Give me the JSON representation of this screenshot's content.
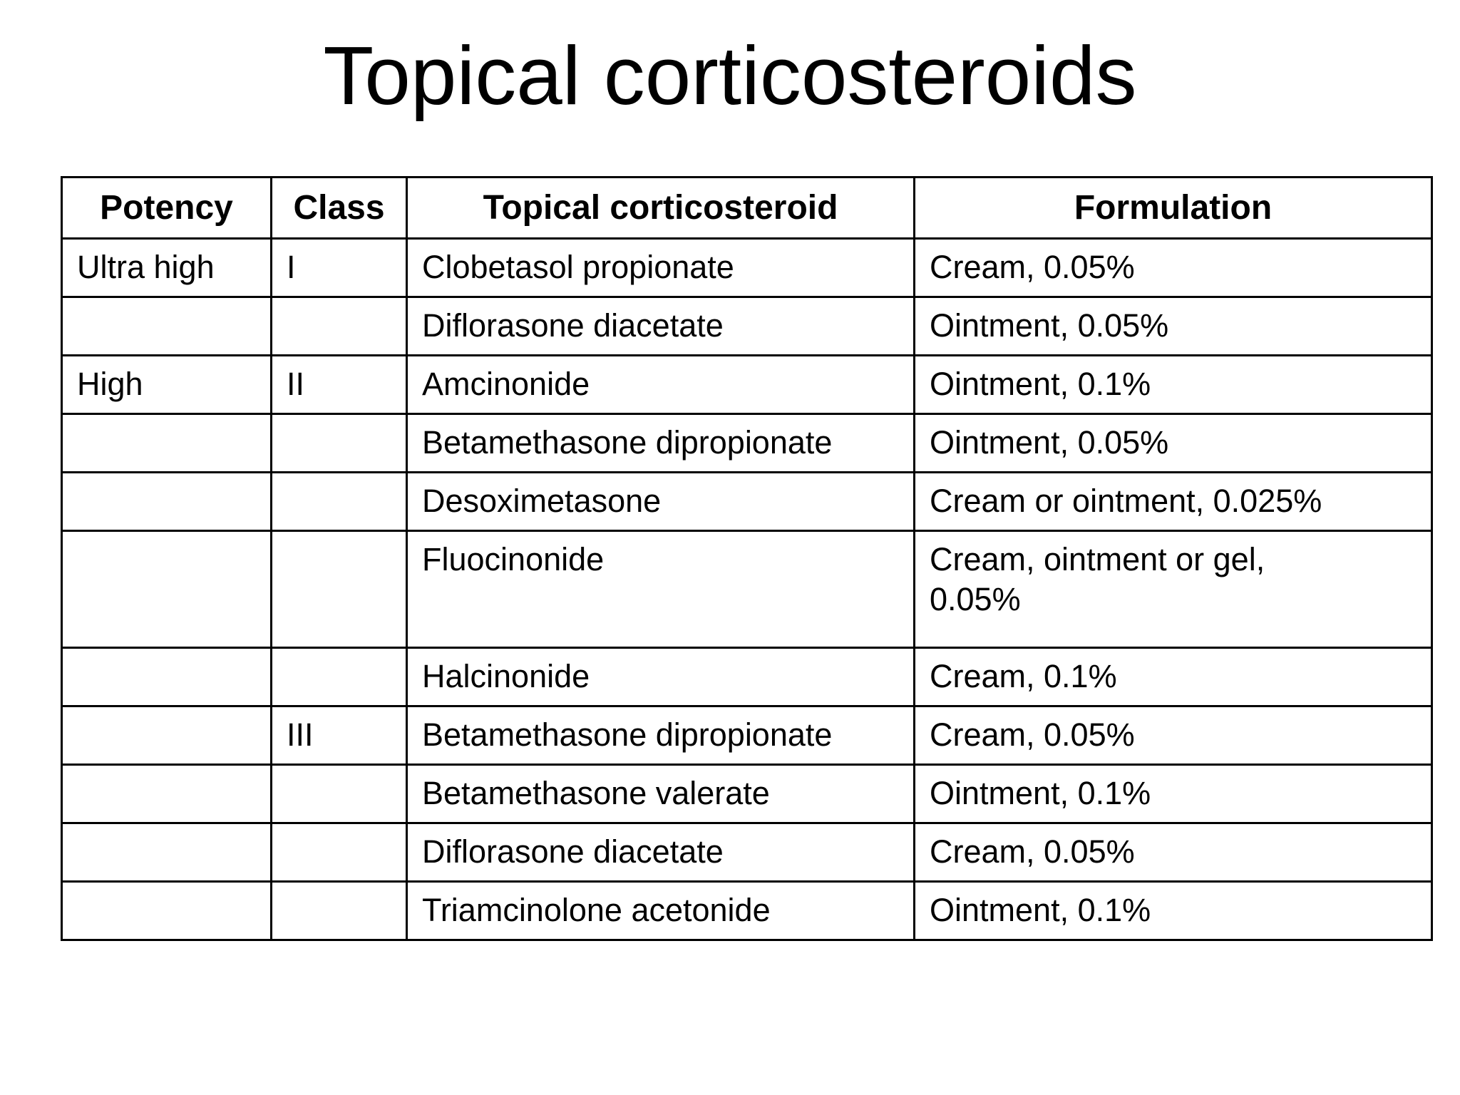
{
  "slide": {
    "title": "Topical corticosteroids",
    "background_color": "#ffffff",
    "text_color": "#000000",
    "border_color": "#000000"
  },
  "table": {
    "columns": [
      "Potency",
      "Class",
      "Topical corticosteroid",
      "Formulation"
    ],
    "rows": [
      {
        "potency": "Ultra high",
        "class": "I",
        "drug": "Clobetasol propionate",
        "formulation": "Cream, 0.05%"
      },
      {
        "potency": "",
        "class": "",
        "drug": "Diflorasone diacetate",
        "formulation": "Ointment, 0.05%"
      },
      {
        "potency": "High",
        "class": "II",
        "drug": "Amcinonide",
        "formulation": "Ointment, 0.1%"
      },
      {
        "potency": "",
        "class": "",
        "drug": "Betamethasone dipropionate",
        "formulation": "Ointment, 0.05%"
      },
      {
        "potency": "",
        "class": "",
        "drug": "Desoximetasone",
        "formulation": "Cream or ointment, 0.025%"
      },
      {
        "potency": "",
        "class": "",
        "drug": "Fluocinonide",
        "formulation": "Cream, ointment or gel,\n0.05%"
      },
      {
        "potency": "",
        "class": "",
        "drug": "Halcinonide",
        "formulation": "Cream, 0.1%"
      },
      {
        "potency": "",
        "class": "III",
        "drug": "Betamethasone dipropionate",
        "formulation": "Cream, 0.05%"
      },
      {
        "potency": "",
        "class": "",
        "drug": "Betamethasone valerate",
        "formulation": "Ointment, 0.1%"
      },
      {
        "potency": "",
        "class": "",
        "drug": "Diflorasone diacetate",
        "formulation": "Cream, 0.05%"
      },
      {
        "potency": "",
        "class": "",
        "drug": "Triamcinolone acetonide",
        "formulation": "Ointment, 0.1%"
      }
    ]
  }
}
